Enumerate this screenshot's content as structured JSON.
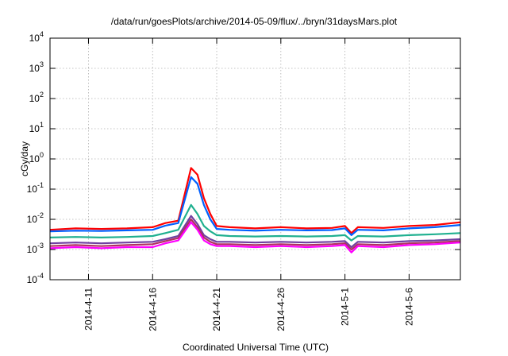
{
  "chart_data": {
    "type": "line",
    "title": "/data/run/goesPlots/archive/2014-05-09/flux/../bryn/31daysMars.plot",
    "xlabel": "Coordinated Universal Time (UTC)",
    "ylabel": "cGy/day",
    "y_scale": "log",
    "ylim": [
      0.0001,
      10000
    ],
    "xlim": [
      "2014-04-08",
      "2014-05-10"
    ],
    "grid": true,
    "legend": "none",
    "x_ticks": [
      "2014-4-11",
      "2014-4-16",
      "2014-4-21",
      "2014-4-26",
      "2014-5-1",
      "2014-5-6"
    ],
    "y_ticks": [
      {
        "base": "10",
        "exp": "-4"
      },
      {
        "base": "10",
        "exp": "-3"
      },
      {
        "base": "10",
        "exp": "-2"
      },
      {
        "base": "10",
        "exp": "-1"
      },
      {
        "base": "10",
        "exp": "0"
      },
      {
        "base": "10",
        "exp": "1"
      },
      {
        "base": "10",
        "exp": "2"
      },
      {
        "base": "10",
        "exp": "3"
      },
      {
        "base": "10",
        "exp": "4"
      }
    ],
    "x": [
      "2014-04-08",
      "2014-04-10",
      "2014-04-12",
      "2014-04-14",
      "2014-04-16",
      "2014-04-17",
      "2014-04-18",
      "2014-04-19",
      "2014-04-19T12:00",
      "2014-04-20",
      "2014-04-20T12:00",
      "2014-04-21",
      "2014-04-22",
      "2014-04-24",
      "2014-04-26",
      "2014-04-28",
      "2014-04-30",
      "2014-05-01",
      "2014-05-01T12:00",
      "2014-05-02",
      "2014-05-04",
      "2014-05-06",
      "2014-05-08",
      "2014-05-10"
    ],
    "series": [
      {
        "color": "#ff0000",
        "values": [
          0.0045,
          0.005,
          0.0048,
          0.005,
          0.0055,
          0.0075,
          0.009,
          0.5,
          0.3,
          0.05,
          0.015,
          0.006,
          0.0055,
          0.005,
          0.0055,
          0.005,
          0.0052,
          0.006,
          0.0035,
          0.0055,
          0.0052,
          0.006,
          0.0065,
          0.008
        ]
      },
      {
        "color": "#0060ff",
        "values": [
          0.004,
          0.0042,
          0.0041,
          0.0043,
          0.0045,
          0.0062,
          0.0075,
          0.25,
          0.15,
          0.03,
          0.01,
          0.0048,
          0.0045,
          0.0042,
          0.0045,
          0.0043,
          0.0044,
          0.005,
          0.003,
          0.0045,
          0.0043,
          0.005,
          0.0055,
          0.0065
        ]
      },
      {
        "color": "#20b090",
        "values": [
          0.0025,
          0.0026,
          0.0025,
          0.0026,
          0.0028,
          0.0035,
          0.0045,
          0.03,
          0.015,
          0.006,
          0.004,
          0.003,
          0.0028,
          0.0027,
          0.0028,
          0.0027,
          0.0028,
          0.003,
          0.002,
          0.0028,
          0.0027,
          0.003,
          0.0032,
          0.0035
        ]
      },
      {
        "color": "#7040a0",
        "values": [
          0.0016,
          0.0017,
          0.0016,
          0.0017,
          0.0018,
          0.0022,
          0.0028,
          0.013,
          0.007,
          0.003,
          0.0022,
          0.0018,
          0.0018,
          0.0017,
          0.0018,
          0.0017,
          0.0018,
          0.0019,
          0.0012,
          0.0018,
          0.0017,
          0.0019,
          0.002,
          0.0022
        ]
      },
      {
        "color": "#b03060",
        "values": [
          0.0013,
          0.0014,
          0.0013,
          0.0014,
          0.0015,
          0.0019,
          0.0024,
          0.01,
          0.0055,
          0.0025,
          0.0018,
          0.0015,
          0.0015,
          0.0014,
          0.0015,
          0.0014,
          0.0015,
          0.0016,
          0.001,
          0.0015,
          0.0014,
          0.0016,
          0.0017,
          0.0019
        ]
      },
      {
        "color": "#ff00ff",
        "values": [
          0.0011,
          0.0012,
          0.0011,
          0.0012,
          0.0012,
          0.0016,
          0.002,
          0.008,
          0.0045,
          0.002,
          0.0015,
          0.0013,
          0.0013,
          0.0012,
          0.0013,
          0.0012,
          0.0013,
          0.0014,
          0.0008,
          0.0013,
          0.0012,
          0.0014,
          0.0015,
          0.0017
        ]
      }
    ]
  }
}
